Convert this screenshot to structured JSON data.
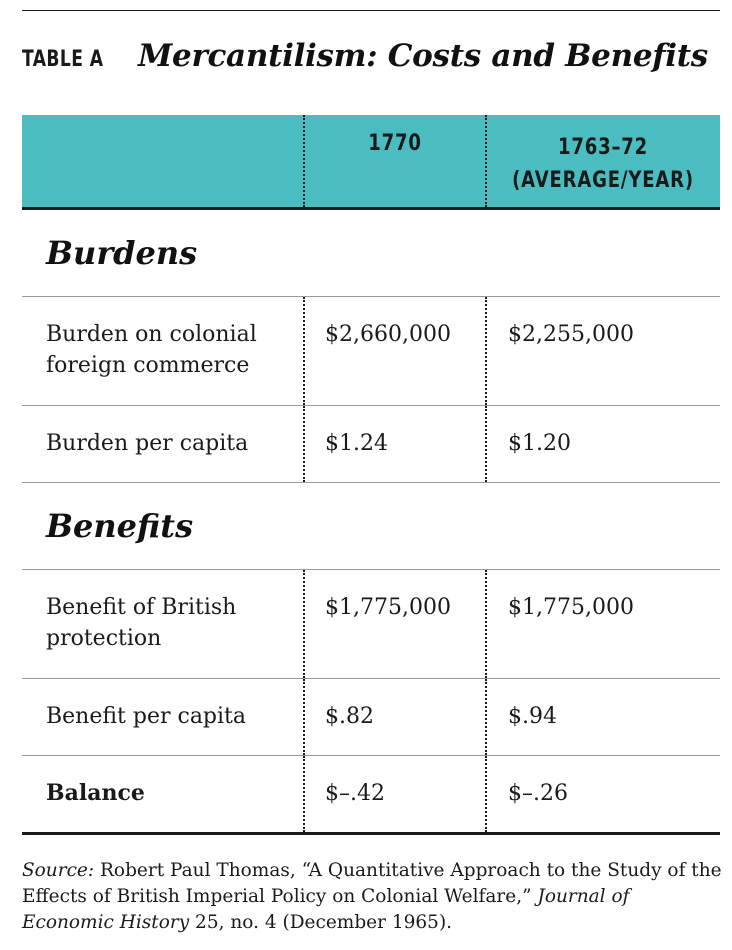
{
  "header": {
    "label": "TABLE A",
    "title": "Mercantilism: Costs and Benefits"
  },
  "table": {
    "columns": [
      "",
      "1770",
      "1763–72",
      "(AVERAGE/YEAR)"
    ],
    "sections": [
      {
        "title": "Burdens",
        "rows": [
          {
            "label": "Burden on colonial foreign commerce",
            "v1770": "$2,660,000",
            "vavg": "$2,255,000"
          },
          {
            "label": "Burden per capita",
            "v1770": "$1.24",
            "vavg": "$1.20"
          }
        ]
      },
      {
        "title": "Benefits",
        "rows": [
          {
            "label": "Benefit of British protection",
            "v1770": "$1,775,000",
            "vavg": "$1,775,000"
          },
          {
            "label": "Benefit per capita",
            "v1770": "$.82",
            "vavg": "$.94"
          },
          {
            "label": "Balance",
            "v1770": "$–.42",
            "vavg": "$–.26"
          }
        ]
      }
    ]
  },
  "source": {
    "prefix": "Source:",
    "text_a": " Robert Paul Thomas, “A Quantitative Approach to the Study of the Effects of British Imperial Policy on Colonial Welfare,” ",
    "journal": "Journal of Economic History",
    "text_b": " 25, no. 4 (December 1965)."
  }
}
